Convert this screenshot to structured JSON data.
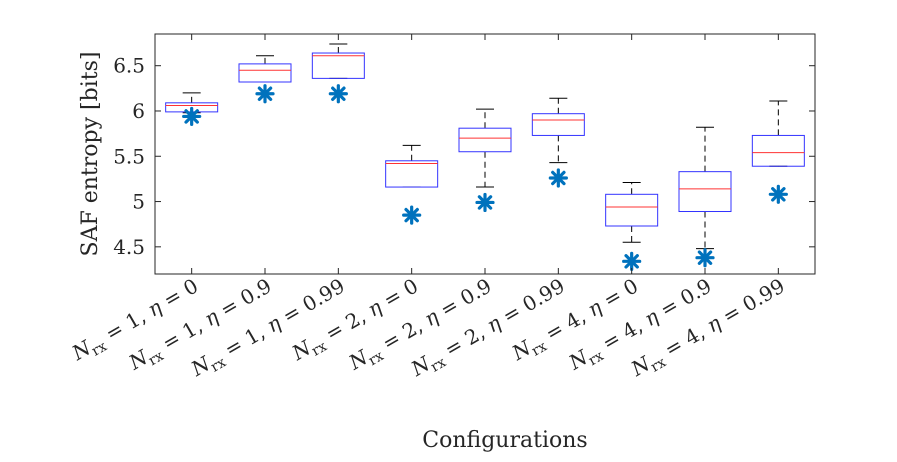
{
  "chart_data": {
    "type": "boxplot",
    "title": "",
    "xlabel": "Configurations",
    "ylabel": "SAF entropy [bits]",
    "ylim": [
      4.2,
      6.85
    ],
    "yticks": [
      4.5,
      5,
      5.5,
      6,
      6.5
    ],
    "ytick_labels": [
      "4.5",
      "5",
      "5.5",
      "6",
      "6.5"
    ],
    "grid": false,
    "categories": [
      "N_rx = 1, η = 0",
      "N_rx = 1, η = 0.9",
      "N_rx = 1, η = 0.99",
      "N_rx = 2, η = 0",
      "N_rx = 2, η = 0.9",
      "N_rx = 2, η = 0.99",
      "N_rx = 4, η = 0",
      "N_rx = 4, η = 0.9",
      "N_rx = 4, η = 0.99"
    ],
    "category_parts": [
      {
        "n": "1",
        "eta": "0"
      },
      {
        "n": "1",
        "eta": "0.9"
      },
      {
        "n": "1",
        "eta": "0.99"
      },
      {
        "n": "2",
        "eta": "0"
      },
      {
        "n": "2",
        "eta": "0.9"
      },
      {
        "n": "2",
        "eta": "0.99"
      },
      {
        "n": "4",
        "eta": "0"
      },
      {
        "n": "4",
        "eta": "0.9"
      },
      {
        "n": "4",
        "eta": "0.99"
      }
    ],
    "boxes": [
      {
        "whisker_low": 5.98,
        "q1": 5.99,
        "median": 6.06,
        "q3": 6.09,
        "whisker_high": 6.2
      },
      {
        "whisker_low": 6.32,
        "q1": 6.32,
        "median": 6.45,
        "q3": 6.52,
        "whisker_high": 6.61
      },
      {
        "whisker_low": 6.36,
        "q1": 6.36,
        "median": 6.61,
        "q3": 6.64,
        "whisker_high": 6.74
      },
      {
        "whisker_low": 5.16,
        "q1": 5.16,
        "median": 5.42,
        "q3": 5.45,
        "whisker_high": 5.62
      },
      {
        "whisker_low": 5.16,
        "q1": 5.55,
        "median": 5.7,
        "q3": 5.81,
        "whisker_high": 6.02
      },
      {
        "whisker_low": 5.43,
        "q1": 5.73,
        "median": 5.9,
        "q3": 5.97,
        "whisker_high": 6.14
      },
      {
        "whisker_low": 4.55,
        "q1": 4.73,
        "median": 4.94,
        "q3": 5.08,
        "whisker_high": 5.21
      },
      {
        "whisker_low": 4.48,
        "q1": 4.89,
        "median": 5.14,
        "q3": 5.33,
        "whisker_high": 5.82
      },
      {
        "whisker_low": 5.39,
        "q1": 5.39,
        "median": 5.54,
        "q3": 5.73,
        "whisker_high": 6.11
      }
    ],
    "markers": [
      5.94,
      6.19,
      6.19,
      4.85,
      4.99,
      5.26,
      4.34,
      4.38,
      5.08
    ],
    "colors": {
      "box": "#3333ff",
      "median": "#ff3333",
      "whisker": "#000000",
      "marker": "#0072bd",
      "axis": "#262626"
    }
  }
}
